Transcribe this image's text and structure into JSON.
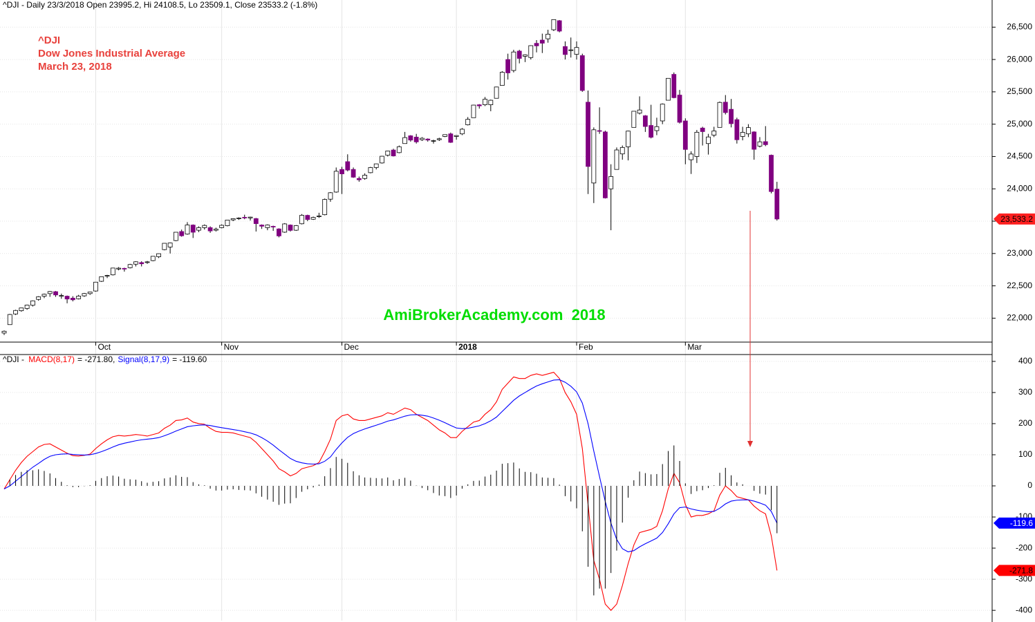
{
  "chart_data": [
    {
      "type": "candlestick",
      "title": "^DJI - Daily 23/3/2018 Open 23995.2, Hi 24108.5, Lo 23509.1, Close 23533.2 (-1.8%)",
      "annotations": [
        "^DJI",
        "Dow Jones Industrial Average",
        "March 23, 2018"
      ],
      "watermark": "AmiBrokerAcademy.com  2018",
      "categories": [
        null,
        null,
        null,
        null,
        null,
        null,
        null,
        null,
        null,
        null,
        null,
        null,
        null,
        null,
        null,
        null,
        "Oct",
        null,
        null,
        null,
        null,
        null,
        null,
        null,
        null,
        null,
        null,
        null,
        null,
        null,
        null,
        null,
        null,
        null,
        null,
        null,
        null,
        null,
        "Nov",
        null,
        null,
        null,
        null,
        null,
        null,
        null,
        null,
        null,
        null,
        null,
        null,
        null,
        null,
        null,
        null,
        null,
        null,
        null,
        null,
        "Dec",
        null,
        null,
        null,
        null,
        null,
        null,
        null,
        null,
        null,
        null,
        null,
        null,
        null,
        null,
        null,
        null,
        null,
        null,
        null,
        "2018",
        null,
        null,
        null,
        null,
        null,
        null,
        null,
        null,
        null,
        null,
        null,
        null,
        null,
        null,
        null,
        null,
        null,
        null,
        null,
        null,
        "Feb",
        null,
        null,
        null,
        null,
        null,
        null,
        null,
        null,
        null,
        null,
        null,
        null,
        null,
        null,
        null,
        null,
        null,
        null,
        "Mar",
        null,
        null,
        null,
        null,
        null,
        null,
        null,
        null,
        null,
        null,
        null,
        null,
        null,
        null,
        null,
        null
      ],
      "open": [
        21770,
        21900,
        22065,
        22115,
        22150,
        22200,
        22290,
        22340,
        22380,
        22410,
        22350,
        22340,
        22310,
        22300,
        22345,
        22380,
        22420,
        22570,
        22650,
        22670,
        22760,
        22770,
        22780,
        22835,
        22860,
        22860,
        22890,
        22950,
        23060,
        23100,
        23200,
        23340,
        23300,
        23440,
        23360,
        23400,
        23400,
        23360,
        23400,
        23430,
        23520,
        23540,
        23560,
        23550,
        23540,
        23440,
        23400,
        23420,
        23380,
        23330,
        23440,
        23360,
        23460,
        23590,
        23530,
        23570,
        23600,
        23840,
        23950,
        24300,
        24420,
        24300,
        24160,
        24160,
        24250,
        24330,
        24400,
        24520,
        24600,
        24560,
        24700,
        24820,
        24800,
        24760,
        24770,
        24740,
        24760,
        24810,
        24850,
        24810,
        24850,
        24990,
        25100,
        25300,
        25300,
        25300,
        25400,
        25600,
        26000,
        25830,
        26130,
        26050,
        26030,
        26250,
        26300,
        26320,
        26460,
        26600,
        26200,
        26140,
        26080,
        26060,
        25340,
        24090,
        24900,
        24880,
        24000,
        24300,
        24540,
        24650,
        24950,
        25170,
        25130,
        24980,
        24900,
        25050,
        25370,
        25770,
        25450,
        25050,
        24450,
        24500,
        24940,
        24700,
        24830,
        24950,
        25340,
        25230,
        25070,
        24810,
        24850,
        24880,
        24660,
        24730,
        24520,
        23995.2
      ],
      "high": [
        21810,
        22066,
        22130,
        22160,
        22210,
        22275,
        22340,
        22380,
        22420,
        22420,
        22380,
        22350,
        22340,
        22360,
        22390,
        22410,
        22560,
        22645,
        22670,
        22780,
        22790,
        22780,
        22840,
        22880,
        22880,
        22885,
        22960,
        23000,
        23160,
        23170,
        23330,
        23370,
        23485,
        23450,
        23420,
        23450,
        23420,
        23400,
        23450,
        23520,
        23545,
        23560,
        23600,
        23570,
        23550,
        23450,
        23450,
        23430,
        23390,
        23470,
        23450,
        23440,
        23610,
        23600,
        23570,
        23630,
        23850,
        23950,
        24330,
        24340,
        24534,
        24330,
        24190,
        24240,
        24340,
        24390,
        24510,
        24590,
        24620,
        24670,
        24880,
        24830,
        24850,
        24800,
        24780,
        24760,
        24790,
        24840,
        24870,
        24830,
        24940,
        25110,
        25300,
        25310,
        25420,
        25380,
        25580,
        25820,
        26090,
        26150,
        26150,
        26080,
        26220,
        26300,
        26400,
        26460,
        26620,
        26610,
        26280,
        26340,
        26280,
        26090,
        25520,
        24950,
        25260,
        24900,
        24380,
        24640,
        24670,
        24900,
        25200,
        25430,
        25140,
        25300,
        25100,
        25320,
        25710,
        25800,
        25530,
        25090,
        24580,
        24910,
        24960,
        24850,
        24960,
        25350,
        25450,
        25390,
        25100,
        24960,
        25000,
        24890,
        24800,
        24970,
        24530,
        24108.5
      ],
      "low": [
        21740,
        21900,
        22050,
        22100,
        22130,
        22180,
        22270,
        22310,
        22330,
        22330,
        22300,
        22230,
        22260,
        22290,
        22330,
        22360,
        22410,
        22560,
        22620,
        22660,
        22740,
        22720,
        22770,
        22800,
        22800,
        22840,
        22880,
        22930,
        23050,
        23000,
        23190,
        23260,
        23290,
        23240,
        23330,
        23370,
        23320,
        23340,
        23390,
        23420,
        23500,
        23520,
        23530,
        23510,
        23340,
        23380,
        23360,
        23350,
        23250,
        23320,
        23340,
        23350,
        23450,
        23500,
        23520,
        23550,
        23590,
        23800,
        23940,
        23920,
        24270,
        24170,
        24110,
        24140,
        24240,
        24300,
        24390,
        24500,
        24500,
        24550,
        24700,
        24730,
        24700,
        24740,
        24730,
        24700,
        24740,
        24800,
        24710,
        24760,
        24830,
        24980,
        25100,
        25240,
        25280,
        25200,
        25400,
        25600,
        25690,
        25800,
        25940,
        25960,
        26000,
        26110,
        26100,
        26260,
        26440,
        26420,
        26000,
        26030,
        26000,
        25500,
        23920,
        23780,
        24850,
        23850,
        23360,
        24300,
        24450,
        24440,
        24950,
        25150,
        24880,
        24780,
        24830,
        25000,
        25370,
        25400,
        25010,
        24380,
        24230,
        24400,
        24670,
        24530,
        24800,
        24950,
        25150,
        24950,
        24700,
        24750,
        24800,
        24450,
        24640,
        24660,
        23930,
        23509.1
      ],
      "close": [
        21798,
        22057,
        22119,
        22158,
        22203,
        22268,
        22331,
        22370,
        22412,
        22359,
        22350,
        22296,
        22284,
        22341,
        22381,
        22405,
        22557,
        22641,
        22661,
        22775,
        22773,
        22761,
        22830,
        22872,
        22841,
        22871,
        22957,
        22997,
        23158,
        23163,
        23329,
        23274,
        23441,
        23329,
        23400,
        23434,
        23349,
        23377,
        23436,
        23517,
        23539,
        23549,
        23557,
        23563,
        23462,
        23422,
        23440,
        23410,
        23272,
        23458,
        23358,
        23431,
        23591,
        23526,
        23558,
        23580,
        23836,
        23940,
        24272,
        24231,
        24290,
        24180,
        24140,
        24211,
        24329,
        24386,
        24504,
        24585,
        24509,
        24651,
        24792,
        24754,
        24726,
        24782,
        24754,
        24746,
        24774,
        24838,
        24719,
        24824,
        24922,
        25075,
        25295,
        25283,
        25386,
        25370,
        25575,
        25803,
        25793,
        26116,
        26017,
        26072,
        26214,
        26211,
        26252,
        26392,
        26617,
        26439,
        26077,
        26149,
        26186,
        25521,
        24346,
        24913,
        24893,
        23860,
        24191,
        24601,
        24640,
        24893,
        25200,
        25219,
        24964,
        24798,
        24962,
        25310,
        25709,
        25410,
        25029,
        24609,
        24538,
        24875,
        24885,
        24802,
        24895,
        25336,
        25179,
        25008,
        24759,
        24874,
        24947,
        24611,
        24727,
        24683,
        23958,
        23533.2
      ],
      "last_label": "23,533.2",
      "up_color": "#ffffff",
      "down_color": "#800080",
      "tag_color": "#ff2020",
      "ylim": [
        21630,
        26920
      ],
      "yticks": [
        {
          "value": 22000,
          "label": "22,000"
        },
        {
          "value": 22500,
          "label": "22,500"
        },
        {
          "value": 23000,
          "label": "23,000"
        },
        {
          "value": 23500,
          "label": "23,500"
        },
        {
          "value": 24000,
          "label": "24,000"
        },
        {
          "value": 24500,
          "label": "24,500"
        },
        {
          "value": 25000,
          "label": "25,000"
        },
        {
          "value": 25500,
          "label": "25,500"
        },
        {
          "value": 26000,
          "label": "26,000"
        },
        {
          "value": 26500,
          "label": "26,500"
        }
      ],
      "grid": true
    },
    {
      "type": "line",
      "title": "^DJI - ",
      "series": [
        {
          "name": "MACD(8,17)",
          "value_text": "= -271.80,",
          "last_label": "-271.8",
          "color": "#ff0000",
          "values": [
            -10,
            20,
            50,
            75,
            95,
            110,
            125,
            133,
            135,
            125,
            115,
            105,
            97,
            96,
            98,
            102,
            120,
            135,
            148,
            158,
            162,
            160,
            162,
            165,
            163,
            160,
            165,
            170,
            185,
            195,
            210,
            212,
            218,
            205,
            200,
            198,
            185,
            175,
            172,
            172,
            170,
            165,
            160,
            155,
            140,
            120,
            100,
            80,
            55,
            45,
            32,
            40,
            55,
            60,
            65,
            75,
            110,
            150,
            210,
            225,
            230,
            215,
            210,
            210,
            215,
            220,
            225,
            235,
            230,
            240,
            250,
            245,
            230,
            220,
            210,
            195,
            180,
            170,
            155,
            155,
            175,
            190,
            205,
            210,
            230,
            245,
            270,
            310,
            330,
            350,
            345,
            345,
            355,
            360,
            355,
            360,
            365,
            345,
            300,
            270,
            230,
            120,
            -60,
            -240,
            -300,
            -380,
            -400,
            -380,
            -320,
            -250,
            -190,
            -150,
            -145,
            -140,
            -130,
            -80,
            -10,
            40,
            10,
            -60,
            -100,
            -95,
            -95,
            -90,
            -80,
            -30,
            0,
            -15,
            -35,
            -40,
            -45,
            -65,
            -80,
            -90,
            -160,
            -271.8
          ]
        },
        {
          "name": "Signal(8,17,9)",
          "value_text": "= -119.60",
          "last_label": "-119.6",
          "color": "#0000ff",
          "values": [
            -10,
            0,
            15,
            30,
            45,
            60,
            72,
            85,
            95,
            100,
            102,
            103,
            101,
            100,
            99,
            100,
            104,
            110,
            117,
            125,
            132,
            137,
            141,
            145,
            148,
            150,
            152,
            155,
            161,
            168,
            176,
            183,
            190,
            193,
            195,
            196,
            194,
            190,
            187,
            184,
            181,
            178,
            174,
            170,
            164,
            155,
            144,
            131,
            116,
            102,
            88,
            79,
            74,
            71,
            70,
            71,
            79,
            93,
            117,
            138,
            156,
            168,
            176,
            183,
            189,
            195,
            201,
            208,
            212,
            218,
            224,
            228,
            229,
            227,
            224,
            218,
            211,
            203,
            194,
            186,
            184,
            185,
            189,
            193,
            200,
            209,
            221,
            239,
            257,
            275,
            289,
            300,
            311,
            321,
            328,
            334,
            340,
            341,
            333,
            320,
            302,
            266,
            200,
            112,
            30,
            -50,
            -120,
            -172,
            -202,
            -212,
            -208,
            -196,
            -186,
            -177,
            -168,
            -150,
            -122,
            -90,
            -70,
            -68,
            -74,
            -78,
            -81,
            -83,
            -82,
            -72,
            -58,
            -49,
            -46,
            -45,
            -45,
            -49,
            -55,
            -62,
            -82,
            -119.6
          ]
        },
        {
          "type": "bar",
          "color": "#000000",
          "values": [
            0,
            20,
            35,
            45,
            50,
            50,
            53,
            48,
            40,
            25,
            13,
            2,
            -4,
            -4,
            -1,
            2,
            16,
            25,
            31,
            33,
            30,
            23,
            21,
            20,
            15,
            10,
            13,
            15,
            24,
            27,
            34,
            29,
            28,
            12,
            5,
            2,
            -9,
            -15,
            -15,
            -12,
            -11,
            -13,
            -14,
            -15,
            -24,
            -35,
            -44,
            -51,
            -61,
            -57,
            -56,
            -39,
            -19,
            -11,
            -5,
            4,
            31,
            57,
            93,
            87,
            74,
            47,
            34,
            27,
            26,
            25,
            24,
            27,
            18,
            22,
            26,
            17,
            1,
            -7,
            -14,
            -23,
            -31,
            -33,
            -39,
            -31,
            -9,
            5,
            16,
            17,
            30,
            36,
            49,
            71,
            73,
            75,
            56,
            45,
            44,
            39,
            27,
            26,
            25,
            4,
            -33,
            -50,
            -72,
            -146,
            -260,
            -352,
            -330,
            -330,
            -280,
            -208,
            -118,
            -38,
            18,
            46,
            41,
            37,
            38,
            70,
            112,
            130,
            80,
            8,
            -26,
            -17,
            -14,
            -7,
            2,
            42,
            58,
            34,
            11,
            5,
            0,
            -16,
            -25,
            -28,
            -78,
            -152.2
          ]
        }
      ],
      "ylim": [
        -433,
        422
      ],
      "yticks": [
        -400,
        -300,
        -200,
        -100,
        0,
        100,
        200,
        300,
        400
      ],
      "grid": true
    }
  ]
}
